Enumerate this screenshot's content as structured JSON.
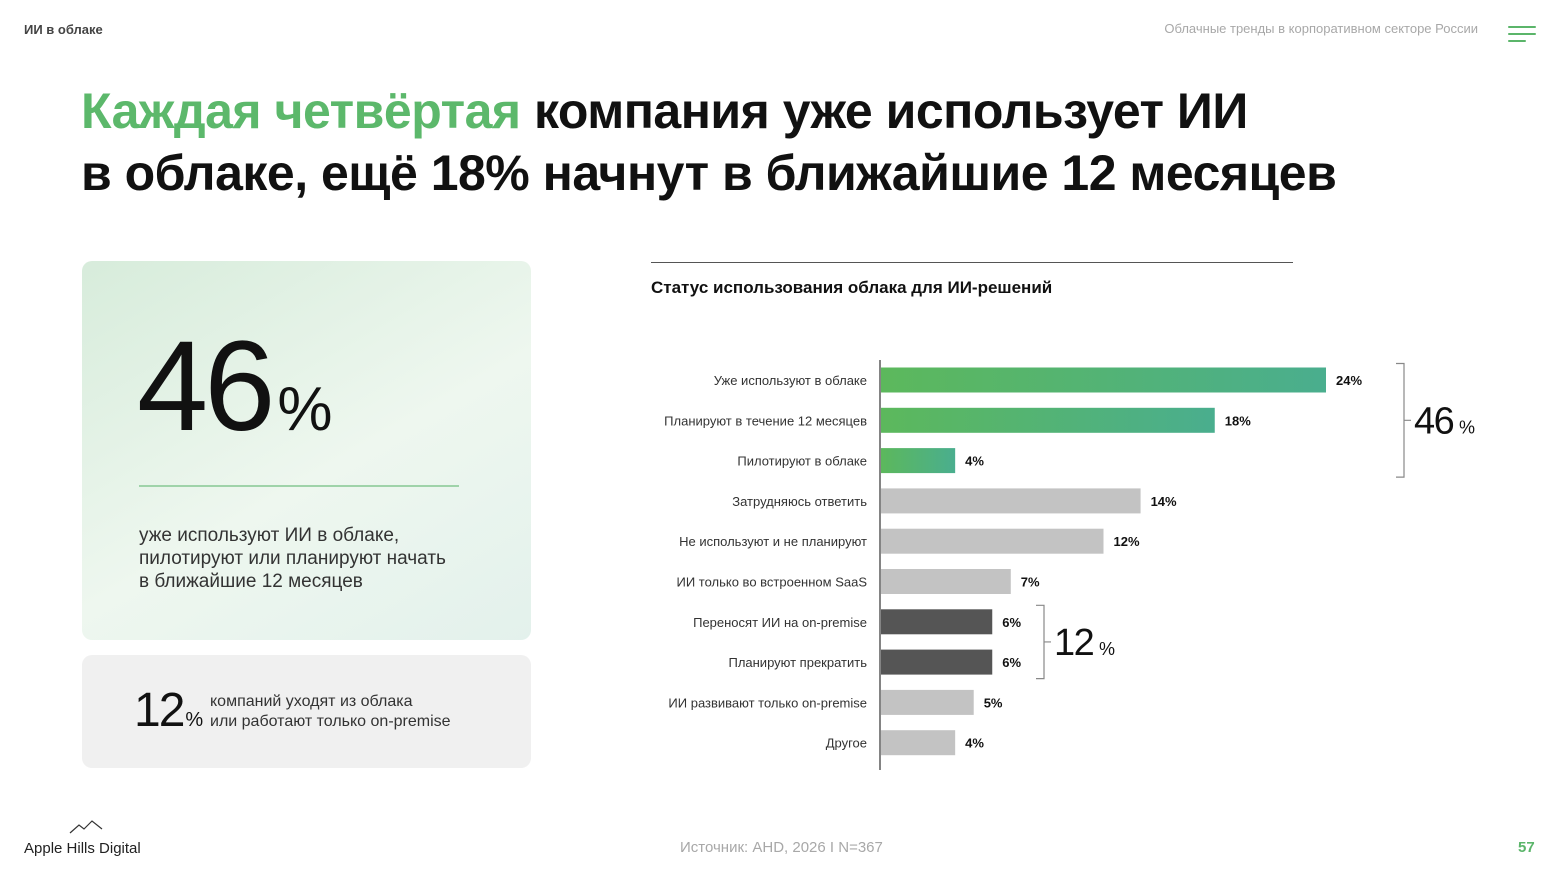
{
  "header": {
    "section": "ИИ в облаке",
    "report_title": "Облачные тренды в корпоративном секторе России"
  },
  "headline": {
    "accent": "Каждая четвёртая",
    "rest1": " компания уже использует ИИ",
    "line2": "в облаке, ещё 18% начнут в ближайшие 12 месяцев"
  },
  "stat_main": {
    "number": "46",
    "unit": "%",
    "text": "уже используют ИИ в облаке, пилотируют или планируют начать в ближайшие 12 месяцев"
  },
  "stat_small": {
    "number": "12",
    "unit": "%",
    "line1": "компаний уходят из облака",
    "line2": "или работают только on-premise"
  },
  "chart_data": {
    "type": "bar",
    "orientation": "horizontal",
    "title": "Статус использования облака для ИИ-решений",
    "categories": [
      "Уже используют в облаке",
      "Планируют в течение 12 месяцев",
      "Пилотируют в облаке",
      "Затрудняюсь ответить",
      "Не используют и не планируют",
      "ИИ только во встроенном SaaS",
      "Переносят ИИ на on-premise",
      "Планируют прекратить",
      "ИИ развивают только on-premise",
      "Другое"
    ],
    "values": [
      24,
      18,
      4,
      14,
      12,
      7,
      6,
      6,
      5,
      4
    ],
    "value_labels": [
      "24%",
      "18%",
      "4%",
      "14%",
      "12%",
      "7%",
      "6%",
      "6%",
      "5%",
      "4%"
    ],
    "groups": [
      "cloud",
      "cloud",
      "cloud",
      "neutral",
      "neutral",
      "neutral",
      "leaving",
      "leaving",
      "neutral",
      "neutral"
    ],
    "colors": {
      "cloud_start": "#5cb85c",
      "cloud_end": "#4aae8e",
      "neutral": "#c3c3c3",
      "leaving": "#555555"
    },
    "brackets": [
      {
        "from": 0,
        "to": 2,
        "number": "46",
        "unit": "%"
      },
      {
        "from": 6,
        "to": 7,
        "number": "12",
        "unit": "%"
      }
    ],
    "xlim": [
      0,
      24
    ],
    "grid": false,
    "legend": "none"
  },
  "footer": {
    "source": "Источник: AHD, 2026 I N=367",
    "brand": "Apple Hills Digital",
    "page": "57"
  },
  "icons": [
    "menu-icon",
    "mountain-logo-icon"
  ]
}
